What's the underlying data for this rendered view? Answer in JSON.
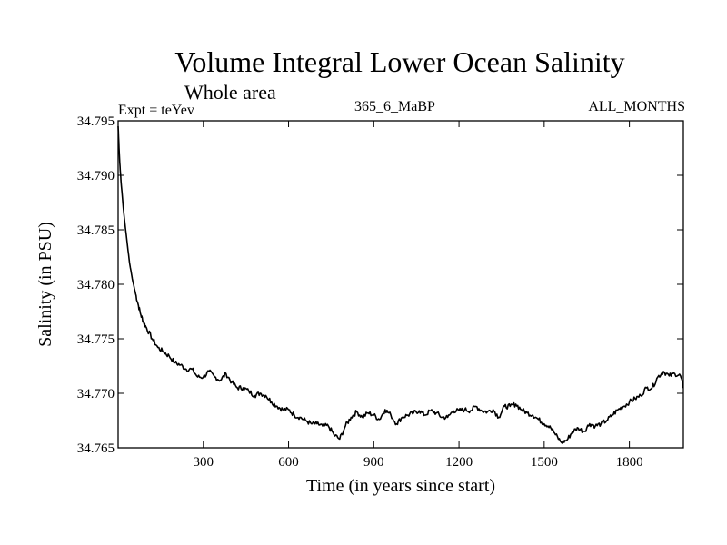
{
  "chart_data": {
    "type": "line",
    "title": "Volume Integral Lower Ocean Salinity",
    "subtitle": "Whole area",
    "header_left": "Expt = teYev",
    "header_mid": "365_6_MaBP",
    "header_right": "ALL_MONTHS",
    "xlabel": "Time (in years since start)",
    "ylabel": "Salinity (in PSU)",
    "xlim": [
      0,
      1990
    ],
    "ylim": [
      34.765,
      34.795
    ],
    "xticks": [
      300,
      600,
      900,
      1200,
      1500,
      1800
    ],
    "xtick_labels": [
      "300",
      "600",
      "900",
      "1200",
      "1500",
      "1800"
    ],
    "yticks": [
      34.765,
      34.77,
      34.775,
      34.78,
      34.785,
      34.79,
      34.795
    ],
    "ytick_labels": [
      "34.765",
      "34.770",
      "34.775",
      "34.780",
      "34.785",
      "34.790",
      "34.795"
    ],
    "grid": false,
    "series": [
      {
        "name": "Salinity",
        "color": "#000000",
        "x": [
          0,
          5,
          10,
          20,
          30,
          40,
          50,
          60,
          70,
          80,
          90,
          100,
          120,
          140,
          160,
          180,
          200,
          220,
          240,
          260,
          280,
          300,
          320,
          340,
          360,
          380,
          400,
          420,
          440,
          460,
          480,
          500,
          520,
          540,
          560,
          580,
          600,
          620,
          640,
          660,
          680,
          700,
          720,
          740,
          760,
          780,
          800,
          820,
          840,
          860,
          880,
          900,
          920,
          940,
          960,
          980,
          1000,
          1020,
          1040,
          1060,
          1080,
          1100,
          1120,
          1140,
          1160,
          1180,
          1200,
          1220,
          1240,
          1260,
          1280,
          1300,
          1320,
          1340,
          1360,
          1380,
          1400,
          1420,
          1440,
          1460,
          1480,
          1500,
          1520,
          1540,
          1560,
          1580,
          1600,
          1620,
          1640,
          1660,
          1680,
          1700,
          1720,
          1740,
          1760,
          1780,
          1800,
          1820,
          1840,
          1860,
          1880,
          1900,
          1920,
          1940,
          1960,
          1980,
          1990
        ],
        "values": [
          34.7945,
          34.7915,
          34.7895,
          34.7865,
          34.7842,
          34.782,
          34.7805,
          34.7793,
          34.7782,
          34.7772,
          34.7765,
          34.776,
          34.775,
          34.7742,
          34.7738,
          34.7734,
          34.7728,
          34.7726,
          34.7722,
          34.7722,
          34.7715,
          34.7715,
          34.772,
          34.7715,
          34.7712,
          34.7718,
          34.771,
          34.7705,
          34.7705,
          34.7702,
          34.7698,
          34.77,
          34.7698,
          34.7692,
          34.7688,
          34.7685,
          34.7685,
          34.768,
          34.7678,
          34.7675,
          34.7672,
          34.7672,
          34.767,
          34.767,
          34.7662,
          34.7658,
          34.767,
          34.7678,
          34.7683,
          34.7678,
          34.7682,
          34.768,
          34.7676,
          34.7685,
          34.768,
          34.7672,
          34.7678,
          34.768,
          34.7682,
          34.7684,
          34.768,
          34.7684,
          34.7682,
          34.7678,
          34.7678,
          34.7684,
          34.7684,
          34.7685,
          34.7684,
          34.7688,
          34.7684,
          34.7683,
          34.7685,
          34.7678,
          34.7688,
          34.7688,
          34.769,
          34.7685,
          34.7682,
          34.768,
          34.7676,
          34.7672,
          34.767,
          34.7662,
          34.7655,
          34.7657,
          34.7665,
          34.7668,
          34.7665,
          34.7672,
          34.767,
          34.7672,
          34.7675,
          34.768,
          34.7685,
          34.7688,
          34.7692,
          34.7695,
          34.7698,
          34.7705,
          34.7705,
          34.7715,
          34.772,
          34.7716,
          34.7718,
          34.7716,
          34.7705
        ]
      }
    ]
  }
}
